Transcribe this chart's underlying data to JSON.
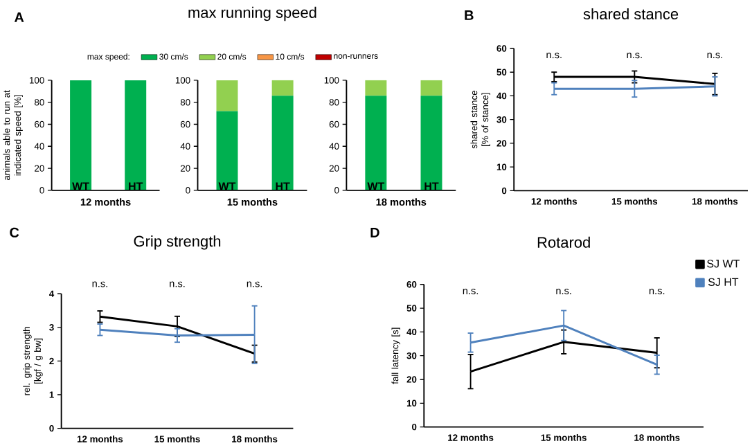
{
  "chart_data": [
    {
      "type": "bar",
      "stacked": true,
      "categories": [
        "WT",
        "HT"
      ],
      "xlabel": "12 months",
      "ylabel": "animals able to run at indicated speed [%]",
      "ylim": [
        0,
        100
      ],
      "yticks": [
        0,
        20,
        40,
        60,
        80,
        100
      ],
      "annotations": [
        "A"
      ],
      "series": [
        {
          "color": "#00b050",
          "values": [
            100,
            100
          ]
        }
      ]
    },
    {
      "type": "bar",
      "stacked": true,
      "title": "max running speed",
      "legend": "top",
      "legend_title": "max speed:",
      "categories": [
        "WT",
        "HT"
      ],
      "xlabel": "15 months",
      "ylim": [
        0,
        100
      ],
      "yticks": [
        0,
        20,
        40,
        60,
        80,
        100
      ],
      "series": [
        {
          "name": "30 cm/s",
          "color": "#00b050",
          "values": [
            72,
            86
          ]
        },
        {
          "name": "20 cm/s",
          "color": "#92d050",
          "values": [
            28,
            14
          ]
        },
        {
          "name": "10 cm/s",
          "color": "#f79646",
          "values": [
            0,
            0
          ]
        },
        {
          "name": "non-runners",
          "color": "#c00000",
          "values": [
            0,
            0
          ]
        }
      ]
    },
    {
      "type": "bar",
      "stacked": true,
      "categories": [
        "WT",
        "HT"
      ],
      "xlabel": "18 months",
      "ylim": [
        0,
        100
      ],
      "yticks": [
        0,
        20,
        40,
        60,
        80,
        100
      ],
      "series": [
        {
          "color": "#00b050",
          "values": [
            86,
            86
          ]
        },
        {
          "color": "#92d050",
          "values": [
            14,
            14
          ]
        }
      ]
    },
    {
      "type": "line",
      "title": "shared stance",
      "ylabel": "shared stance [% of stance]",
      "categories": [
        "12 months",
        "15 months",
        "18 months"
      ],
      "ylim": [
        0,
        60
      ],
      "yticks": [
        0,
        10,
        20,
        30,
        40,
        50,
        60
      ],
      "marker": "none",
      "annotations": [
        "B",
        "n.s.",
        "n.s.",
        "n.s."
      ],
      "series": [
        {
          "color": "#000000",
          "values": [
            48,
            48,
            45
          ],
          "errors": [
            2,
            2.5,
            4.5
          ]
        },
        {
          "color": "#4f81bd",
          "values": [
            43,
            43,
            44
          ],
          "errors": [
            2.5,
            3.5,
            4
          ]
        }
      ]
    },
    {
      "type": "line",
      "title": "Grip strength",
      "ylabel": "rel. grip strength [kgf / g bw]",
      "categories": [
        "12 months",
        "15 months",
        "18 months"
      ],
      "ylim": [
        0,
        4
      ],
      "yticks": [
        0,
        1,
        2,
        3,
        4
      ],
      "marker": "none",
      "annotations": [
        "C",
        "n.s.",
        "n.s.",
        "n.s."
      ],
      "series": [
        {
          "color": "#000000",
          "values": [
            3.32,
            3.03,
            2.22
          ],
          "errors": [
            0.17,
            0.3,
            0.25
          ]
        },
        {
          "color": "#4f81bd",
          "values": [
            2.93,
            2.76,
            2.78
          ],
          "errors": [
            0.17,
            0.2,
            [
              1.93,
              3.64
            ]
          ]
        }
      ]
    },
    {
      "type": "line",
      "title": "Rotarod",
      "ylabel": "fall latency [s]",
      "categories": [
        "12 months",
        "15 months",
        "18 months"
      ],
      "ylim": [
        0,
        60
      ],
      "yticks": [
        0,
        10,
        20,
        30,
        40,
        50,
        60
      ],
      "marker": "none",
      "legend": "right",
      "annotations": [
        "D",
        "n.s.",
        "n.s.",
        "n.s."
      ],
      "series": [
        {
          "name": "SJ WT",
          "color": "#000000",
          "values": [
            23.3,
            35.8,
            31.2
          ],
          "errors": [
            7.2,
            5,
            6.3
          ]
        },
        {
          "name": "SJ HT",
          "color": "#4f81bd",
          "values": [
            35.5,
            42.7,
            26.2
          ],
          "errors": [
            4,
            6.3,
            4
          ]
        }
      ]
    }
  ]
}
